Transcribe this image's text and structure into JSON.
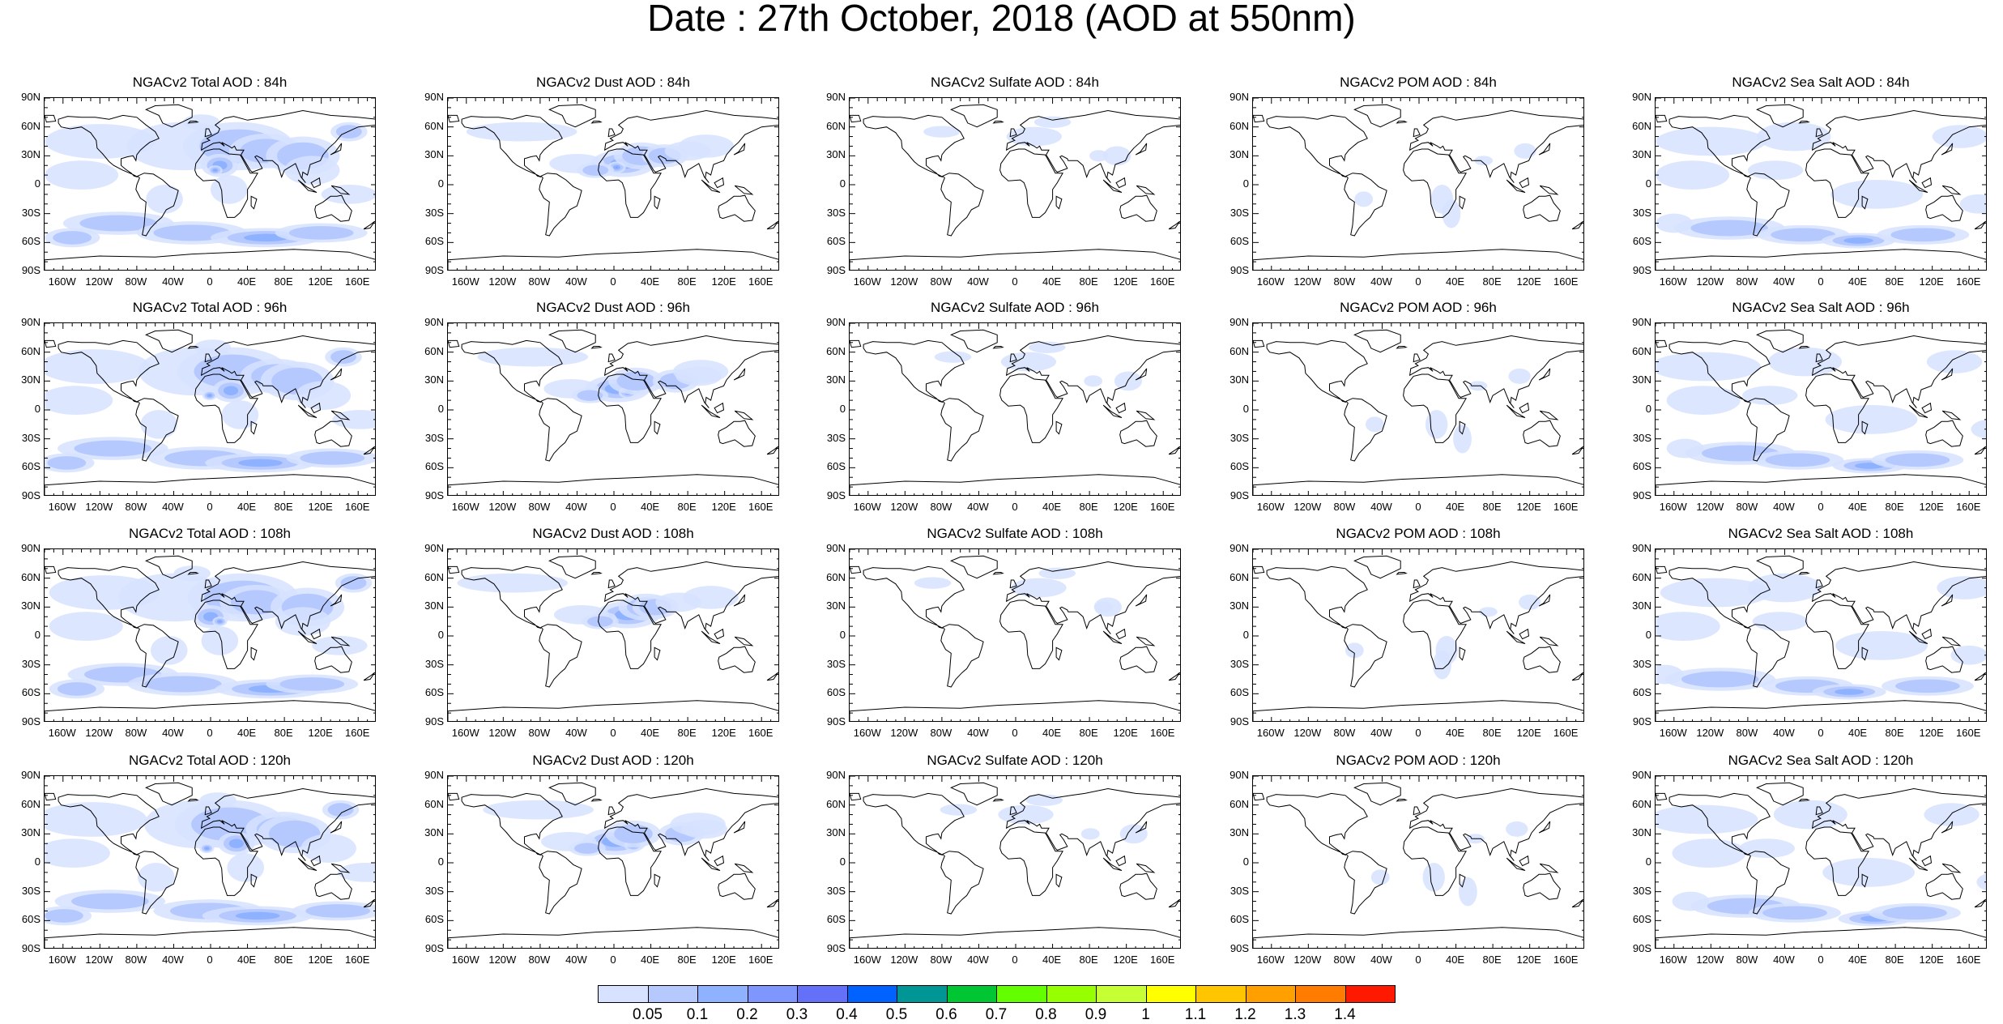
{
  "title": "Date : 27th October, 2018 (AOD at 550nm)",
  "panels": [
    {
      "title": "NGACv2 Total AOD : 84h",
      "species": "total"
    },
    {
      "title": "NGACv2 Dust AOD : 84h",
      "species": "dust"
    },
    {
      "title": "NGACv2 Sulfate AOD : 84h",
      "species": "sulfate"
    },
    {
      "title": "NGACv2 POM AOD : 84h",
      "species": "pom"
    },
    {
      "title": "NGACv2 Sea Salt AOD : 84h",
      "species": "seasalt"
    },
    {
      "title": "NGACv2 Total AOD : 96h",
      "species": "total"
    },
    {
      "title": "NGACv2 Dust AOD : 96h",
      "species": "dust"
    },
    {
      "title": "NGACv2 Sulfate AOD : 96h",
      "species": "sulfate"
    },
    {
      "title": "NGACv2 POM AOD : 96h",
      "species": "pom"
    },
    {
      "title": "NGACv2 Sea Salt AOD : 96h",
      "species": "seasalt"
    },
    {
      "title": "NGACv2 Total AOD : 108h",
      "species": "total"
    },
    {
      "title": "NGACv2 Dust AOD : 108h",
      "species": "dust"
    },
    {
      "title": "NGACv2 Sulfate AOD : 108h",
      "species": "sulfate"
    },
    {
      "title": "NGACv2 POM AOD : 108h",
      "species": "pom"
    },
    {
      "title": "NGACv2 Sea Salt AOD : 108h",
      "species": "seasalt"
    },
    {
      "title": "NGACv2 Total AOD : 120h",
      "species": "total"
    },
    {
      "title": "NGACv2 Dust AOD : 120h",
      "species": "dust"
    },
    {
      "title": "NGACv2 Sulfate AOD : 120h",
      "species": "sulfate"
    },
    {
      "title": "NGACv2 POM AOD : 120h",
      "species": "pom"
    },
    {
      "title": "NGACv2 Sea Salt  AOD : 120h",
      "species": "seasalt"
    }
  ],
  "lat_labels": [
    "90N",
    "60N",
    "30N",
    "0",
    "30S",
    "60S",
    "90S"
  ],
  "lon_labels": [
    "160W",
    "120W",
    "80W",
    "40W",
    "0",
    "40E",
    "80E",
    "120E",
    "160E"
  ],
  "lon_values": [
    -160,
    -120,
    -80,
    -40,
    0,
    40,
    80,
    120,
    160
  ],
  "lat_values": [
    90,
    60,
    30,
    0,
    -30,
    -60,
    -90
  ],
  "colorbar": {
    "labels": [
      "0.05",
      "0.1",
      "0.2",
      "0.3",
      "0.4",
      "0.5",
      "0.6",
      "0.7",
      "0.8",
      "0.9",
      "1",
      "1.1",
      "1.2",
      "1.3",
      "1.4"
    ],
    "colors": [
      "#ffffff",
      "#d6e2ff",
      "#b5c9ff",
      "#8eb2ff",
      "#7f96ff",
      "#6370f7",
      "#0063ff",
      "#009696",
      "#00c633",
      "#63ff00",
      "#96ff00",
      "#c6ff33",
      "#ffff00",
      "#ffc600",
      "#ffa000",
      "#ff7c00",
      "#ff1900"
    ]
  }
}
